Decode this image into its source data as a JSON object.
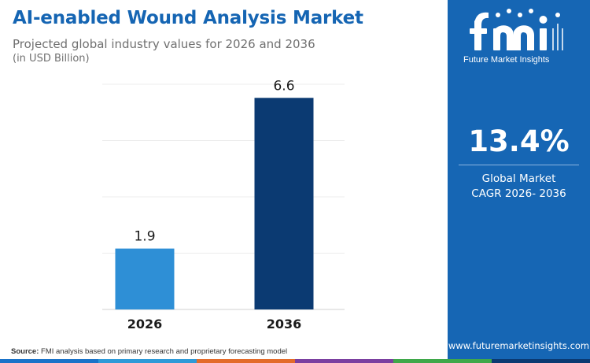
{
  "title": "AI-enabled Wound Analysis Market",
  "subtitle": "Projected global industry values for 2026 and 2036",
  "unit_note": "(in USD Billion)",
  "chart_data": {
    "type": "bar",
    "title": "AI-enabled Wound Analysis Market",
    "subtitle": "Projected global industry values for 2026 and 2036",
    "categories": [
      "2026",
      "2036"
    ],
    "values": [
      1.9,
      6.6
    ],
    "data_labels": [
      "1.9",
      "6.6"
    ],
    "bar_colors": [
      "#2e8fd6",
      "#0b3a72"
    ],
    "ylabel": "USD Billion",
    "ylim": [
      0,
      7
    ],
    "grid": true,
    "legend": "none"
  },
  "sidebar": {
    "logo_text": "fmi",
    "logo_tagline": "Future Market Insights",
    "cagr_value": "13.4%",
    "cagr_label_1": "Global Market",
    "cagr_label_2": "CAGR 2026- 2036",
    "website": "www.futuremarketinsights.com",
    "background_color": "#1666b4"
  },
  "source": {
    "label": "Source:",
    "text": " FMI analysis based on primary research and proprietary forecasting model"
  },
  "bottom_bar_colors": [
    "#1a73c9",
    "#2e9ad8",
    "#e36b2a",
    "#7b3fa0",
    "#3fa84a",
    "#0b3a72"
  ]
}
